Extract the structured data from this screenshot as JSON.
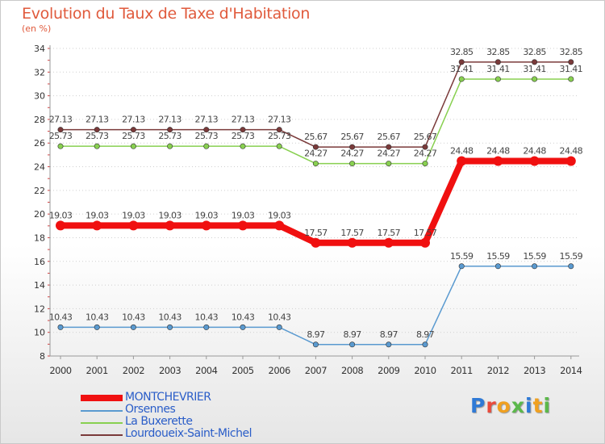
{
  "header": {
    "title": "Evolution du Taux de Taxe d'Habitation",
    "subtitle": "(en %)"
  },
  "logo": {
    "text": "Proxiti",
    "colors": [
      "#2f7ad6",
      "#e94b3c",
      "#f0a020",
      "#5bb84a",
      "#2f7ad6",
      "#f0a020",
      "#5bb84a"
    ]
  },
  "chart_data": {
    "type": "line",
    "title": "Evolution du Taux de Taxe d'Habitation",
    "subtitle": "(en %)",
    "xlabel": "",
    "ylabel": "",
    "x": [
      "2000",
      "2001",
      "2002",
      "2003",
      "2004",
      "2005",
      "2006",
      "2007",
      "2008",
      "2009",
      "2010",
      "2011",
      "2012",
      "2013",
      "2014"
    ],
    "ylim": [
      8,
      34
    ],
    "yticks": [
      "8",
      "10",
      "12",
      "14",
      "16",
      "18",
      "20",
      "22",
      "24",
      "26",
      "28",
      "30",
      "32",
      "34"
    ],
    "grid": "horizontal dotted",
    "legend": "bottom-left",
    "series": [
      {
        "name": "MONTCHEVRIER",
        "color": "#f01010",
        "values": [
          19.03,
          19.03,
          19.03,
          19.03,
          19.03,
          19.03,
          19.03,
          17.57,
          17.57,
          17.57,
          17.57,
          24.48,
          24.48,
          24.48,
          24.48
        ],
        "labels": [
          "19.03",
          "19.03",
          "19.03",
          "19.03",
          "19.03",
          "19.03",
          "19.03",
          "17.57",
          "17.57",
          "17.57",
          "17.57",
          "24.48",
          "24.48",
          "24.48",
          "24.48"
        ]
      },
      {
        "name": "Orsennes",
        "color": "#5a9ad0",
        "values": [
          10.43,
          10.43,
          10.43,
          10.43,
          10.43,
          10.43,
          10.43,
          8.97,
          8.97,
          8.97,
          8.97,
          15.59,
          15.59,
          15.59,
          15.59
        ],
        "labels": [
          "10.43",
          "10.43",
          "10.43",
          "10.43",
          "10.43",
          "10.43",
          "10.43",
          "8.97",
          "8.97",
          "8.97",
          "8.97",
          "15.59",
          "15.59",
          "15.59",
          "15.59"
        ]
      },
      {
        "name": "La Buxerette",
        "color": "#88d050",
        "values": [
          25.73,
          25.73,
          25.73,
          25.73,
          25.73,
          25.73,
          25.73,
          24.27,
          24.27,
          24.27,
          24.27,
          31.41,
          31.41,
          31.41,
          31.41
        ],
        "labels": [
          "25.73",
          "25.73",
          "25.73",
          "25.73",
          "25.73",
          "25.73",
          "25.73",
          "24.27",
          "24.27",
          "24.27",
          "24.27",
          "31.41",
          "31.41",
          "31.41",
          "31.41"
        ]
      },
      {
        "name": "Lourdoueix-Saint-Michel",
        "color": "#7a3a3a",
        "values": [
          27.13,
          27.13,
          27.13,
          27.13,
          27.13,
          27.13,
          27.13,
          25.67,
          25.67,
          25.67,
          25.67,
          32.85,
          32.85,
          32.85,
          32.85
        ],
        "labels": [
          "27.13",
          "27.13",
          "27.13",
          "27.13",
          "27.13",
          "27.13",
          "27.13",
          "25.67",
          "25.67",
          "25.67",
          "25.67",
          "32.85",
          "32.85",
          "32.85",
          "32.85"
        ]
      }
    ]
  }
}
